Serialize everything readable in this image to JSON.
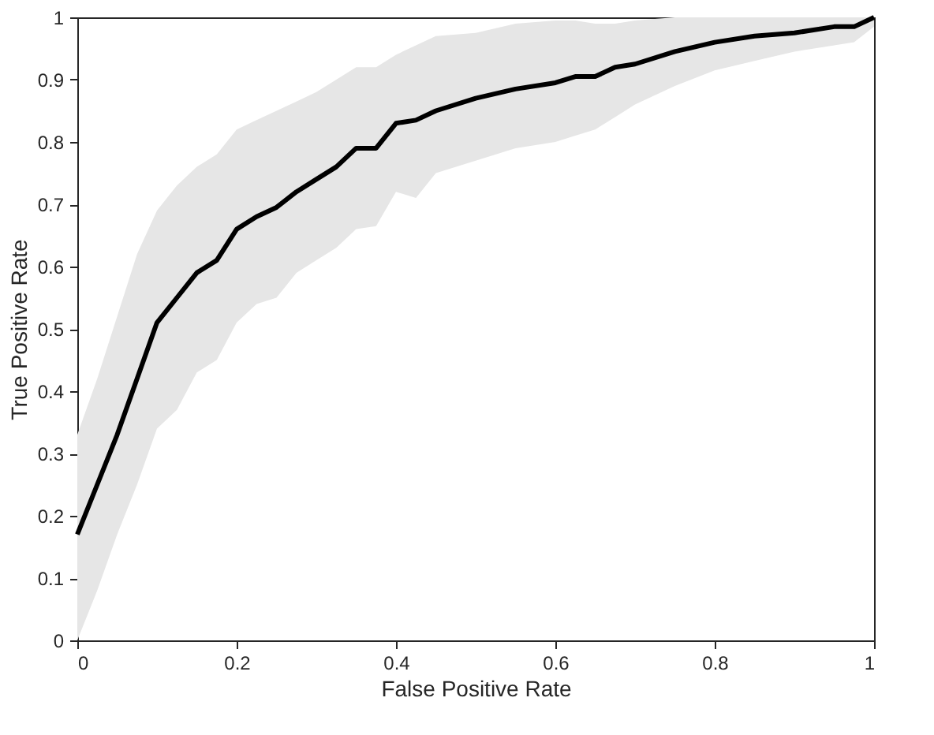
{
  "chart_data": {
    "type": "line",
    "xlabel": "False Positive Rate",
    "ylabel": "True Positive Rate",
    "x": [
      0,
      0.025,
      0.05,
      0.075,
      0.1,
      0.125,
      0.15,
      0.175,
      0.2,
      0.225,
      0.25,
      0.275,
      0.3,
      0.325,
      0.35,
      0.375,
      0.4,
      0.425,
      0.45,
      0.5,
      0.55,
      0.6,
      0.625,
      0.65,
      0.675,
      0.7,
      0.75,
      0.8,
      0.85,
      0.9,
      0.95,
      0.975,
      1
    ],
    "series": [
      {
        "color": "#000000",
        "values": [
          0.17,
          0.25,
          0.33,
          0.42,
          0.51,
          0.55,
          0.59,
          0.61,
          0.66,
          0.68,
          0.695,
          0.72,
          0.74,
          0.76,
          0.79,
          0.79,
          0.83,
          0.835,
          0.85,
          0.87,
          0.885,
          0.895,
          0.905,
          0.905,
          0.92,
          0.925,
          0.945,
          0.96,
          0.97,
          0.975,
          0.985,
          0.985,
          1.0
        ],
        "upper": [
          0.33,
          0.42,
          0.52,
          0.62,
          0.69,
          0.73,
          0.76,
          0.78,
          0.82,
          0.835,
          0.85,
          0.865,
          0.88,
          0.9,
          0.92,
          0.92,
          0.94,
          0.955,
          0.97,
          0.975,
          0.99,
          0.995,
          0.995,
          0.99,
          0.99,
          0.995,
          1,
          1,
          1,
          1,
          1,
          1,
          1
        ],
        "lower": [
          0,
          0.08,
          0.17,
          0.25,
          0.34,
          0.37,
          0.43,
          0.45,
          0.51,
          0.54,
          0.55,
          0.59,
          0.61,
          0.63,
          0.66,
          0.665,
          0.72,
          0.71,
          0.75,
          0.77,
          0.79,
          0.8,
          0.81,
          0.82,
          0.84,
          0.86,
          0.89,
          0.915,
          0.93,
          0.945,
          0.955,
          0.96,
          0.985
        ]
      }
    ],
    "xlim": [
      0,
      1
    ],
    "xticks": [
      0,
      0.2,
      0.4,
      0.6,
      0.8,
      1
    ],
    "ylim": [
      0,
      1
    ],
    "yticks": [
      0,
      0.1,
      0.2,
      0.3,
      0.4,
      0.5,
      0.6,
      0.7,
      0.8,
      0.9,
      1
    ],
    "line_style": "solid"
  }
}
